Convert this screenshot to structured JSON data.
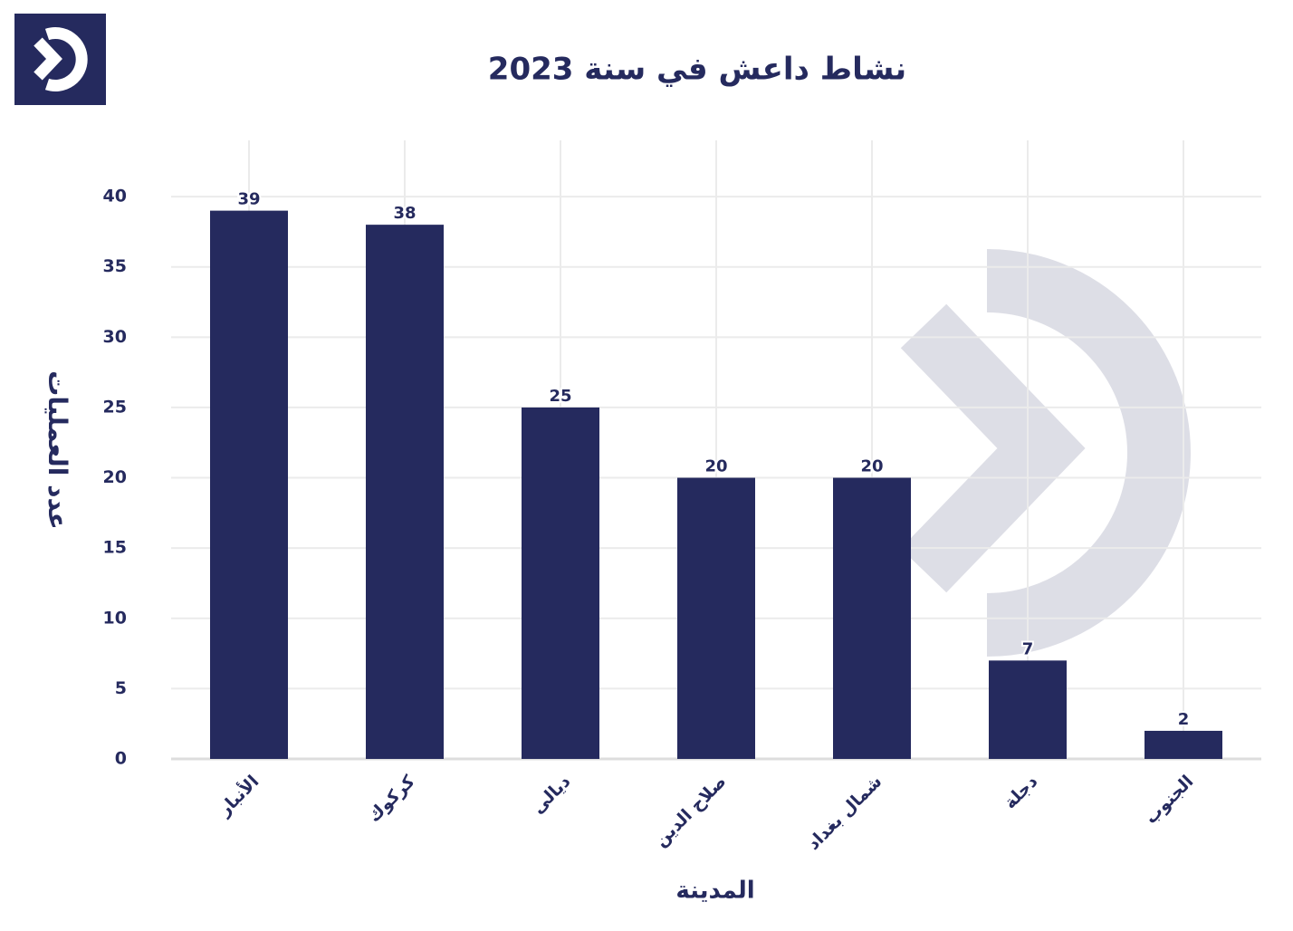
{
  "chart_data": {
    "type": "bar",
    "title": "نشاط داعش في سنة 2023",
    "x_label": "المدينة",
    "y_label": "عدد العمليات",
    "categories": [
      "الأنبار",
      "كركوك",
      "ديالى",
      "صلاح الدين",
      "شمال بغداد",
      "دجلة",
      "الجنوب"
    ],
    "values": [
      39,
      38,
      25,
      20,
      20,
      7,
      2
    ],
    "color": "#252a5e",
    "ylim": [
      0,
      44
    ],
    "yticks": [
      0,
      5,
      10,
      15,
      20,
      25,
      30,
      35,
      40
    ],
    "grid": true
  }
}
